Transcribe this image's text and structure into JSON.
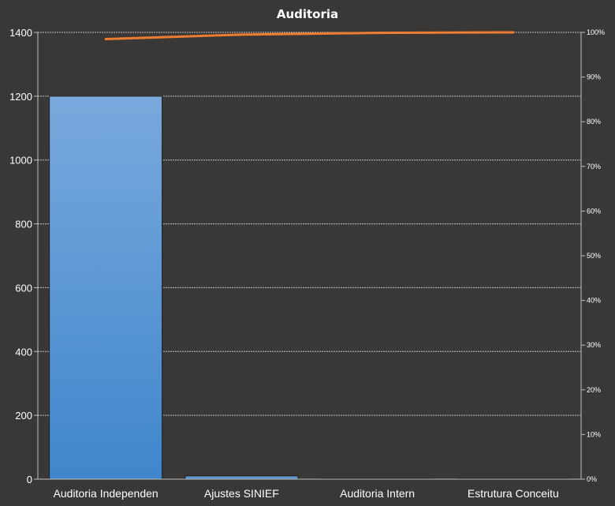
{
  "chart_data": {
    "type": "bar",
    "title": "Auditoria",
    "categories": [
      "Auditoria Independen",
      "Ajustes SINIEF",
      "Auditoria Intern",
      "Estrutura Conceitu"
    ],
    "series": [
      {
        "type": "bar",
        "values": [
          1200,
          10,
          2,
          1
        ]
      },
      {
        "type": "line",
        "axis": "right",
        "values": [
          98.5,
          99.5,
          99.9,
          100
        ]
      }
    ],
    "ylim": [
      0,
      1400
    ],
    "y_ticks": [
      0,
      200,
      400,
      600,
      800,
      1000,
      1200,
      1400
    ],
    "y2lim": [
      0,
      100
    ],
    "y2_ticks": [
      "0%",
      "10%",
      "20%",
      "30%",
      "40%",
      "50%",
      "60%",
      "70%",
      "80%",
      "90%",
      "100%"
    ],
    "grid": true,
    "colors": {
      "bar": "#5b9bd5",
      "line": "#ed7d31",
      "background": "#3a3836",
      "grid": "#d9d9d9"
    }
  }
}
